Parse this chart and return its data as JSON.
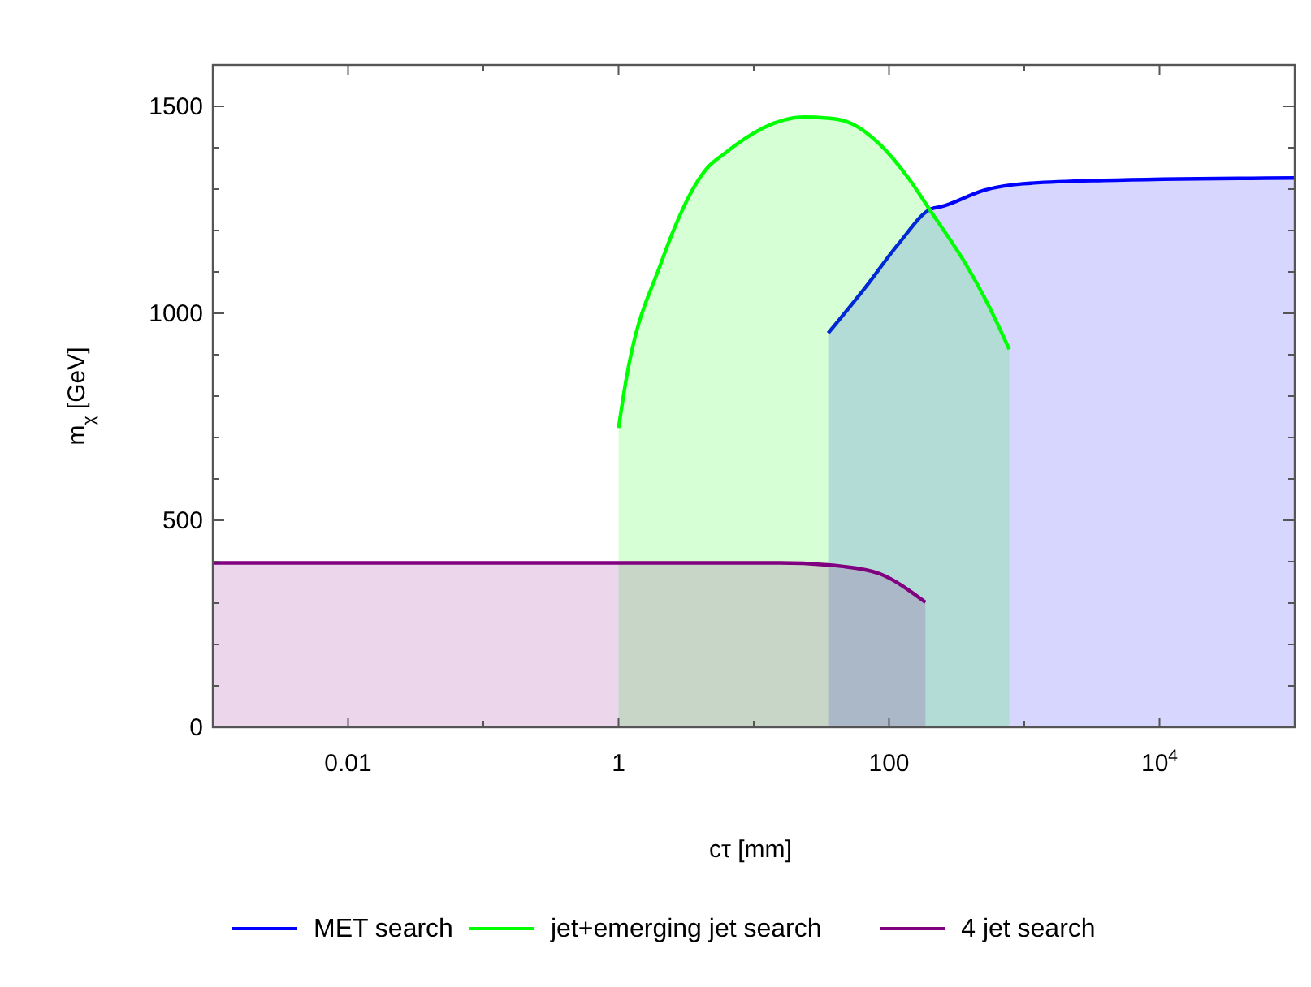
{
  "chart_data": {
    "type": "area",
    "xlabel": "cτ [mm]",
    "ylabel": "m$_{χ}$ [GeV]",
    "log": "x",
    "xlim": [
      0.001,
      100000
    ],
    "ylim": [
      0,
      1600
    ],
    "xticks": [
      {
        "value": 0.001,
        "label": null
      },
      {
        "value": 0.01,
        "label": "0.01"
      },
      {
        "value": 0.1,
        "label": null
      },
      1,
      {
        "value": 10,
        "label": null
      },
      100,
      {
        "value": 1000,
        "label": null
      },
      {
        "value": 10000,
        "label": "10$^{4}$"
      },
      {
        "value": 100000,
        "label": null
      }
    ],
    "yticks": [
      0,
      {
        "value": 100,
        "label": null
      },
      {
        "value": 200,
        "label": null
      },
      {
        "value": 300,
        "label": null
      },
      {
        "value": 400,
        "label": null
      },
      500,
      {
        "value": 600,
        "label": null
      },
      {
        "value": 700,
        "label": null
      },
      {
        "value": 800,
        "label": null
      },
      {
        "value": 900,
        "label": null
      },
      1000,
      {
        "value": 1100,
        "label": null
      },
      {
        "value": 1200,
        "label": null
      },
      {
        "value": 1300,
        "label": null
      },
      {
        "value": 1400,
        "label": null
      },
      1500
    ],
    "grid": false,
    "legend": "bottom",
    "series": [
      {
        "name": "MET search",
        "color": "#0000ff",
        "x": [
          35.5,
          67,
          117,
          204,
          245,
          512,
          975,
          3870,
          100000
        ],
        "values": [
          952,
          1063,
          1167,
          1252,
          1258,
          1298,
          1313,
          1321,
          1327
        ]
      },
      {
        "name": "jet+emerging jet search",
        "color": "#00ff00",
        "x": [
          1.0,
          1.13,
          2.06,
          4.5,
          5.9,
          23.5,
          39,
          54,
          85,
          141,
          204,
          355,
          560,
          775
        ],
        "values": [
          723,
          834,
          1121,
          1350,
          1383,
          1474,
          1470,
          1457,
          1409,
          1324,
          1246,
          1128,
          1011,
          913
        ]
      },
      {
        "name": "4 jet search",
        "color": "#800080",
        "x": [
          0.001,
          1,
          15.6,
          47,
          85,
          186
        ],
        "values": [
          397,
          397,
          397,
          388,
          371,
          302
        ]
      }
    ]
  }
}
